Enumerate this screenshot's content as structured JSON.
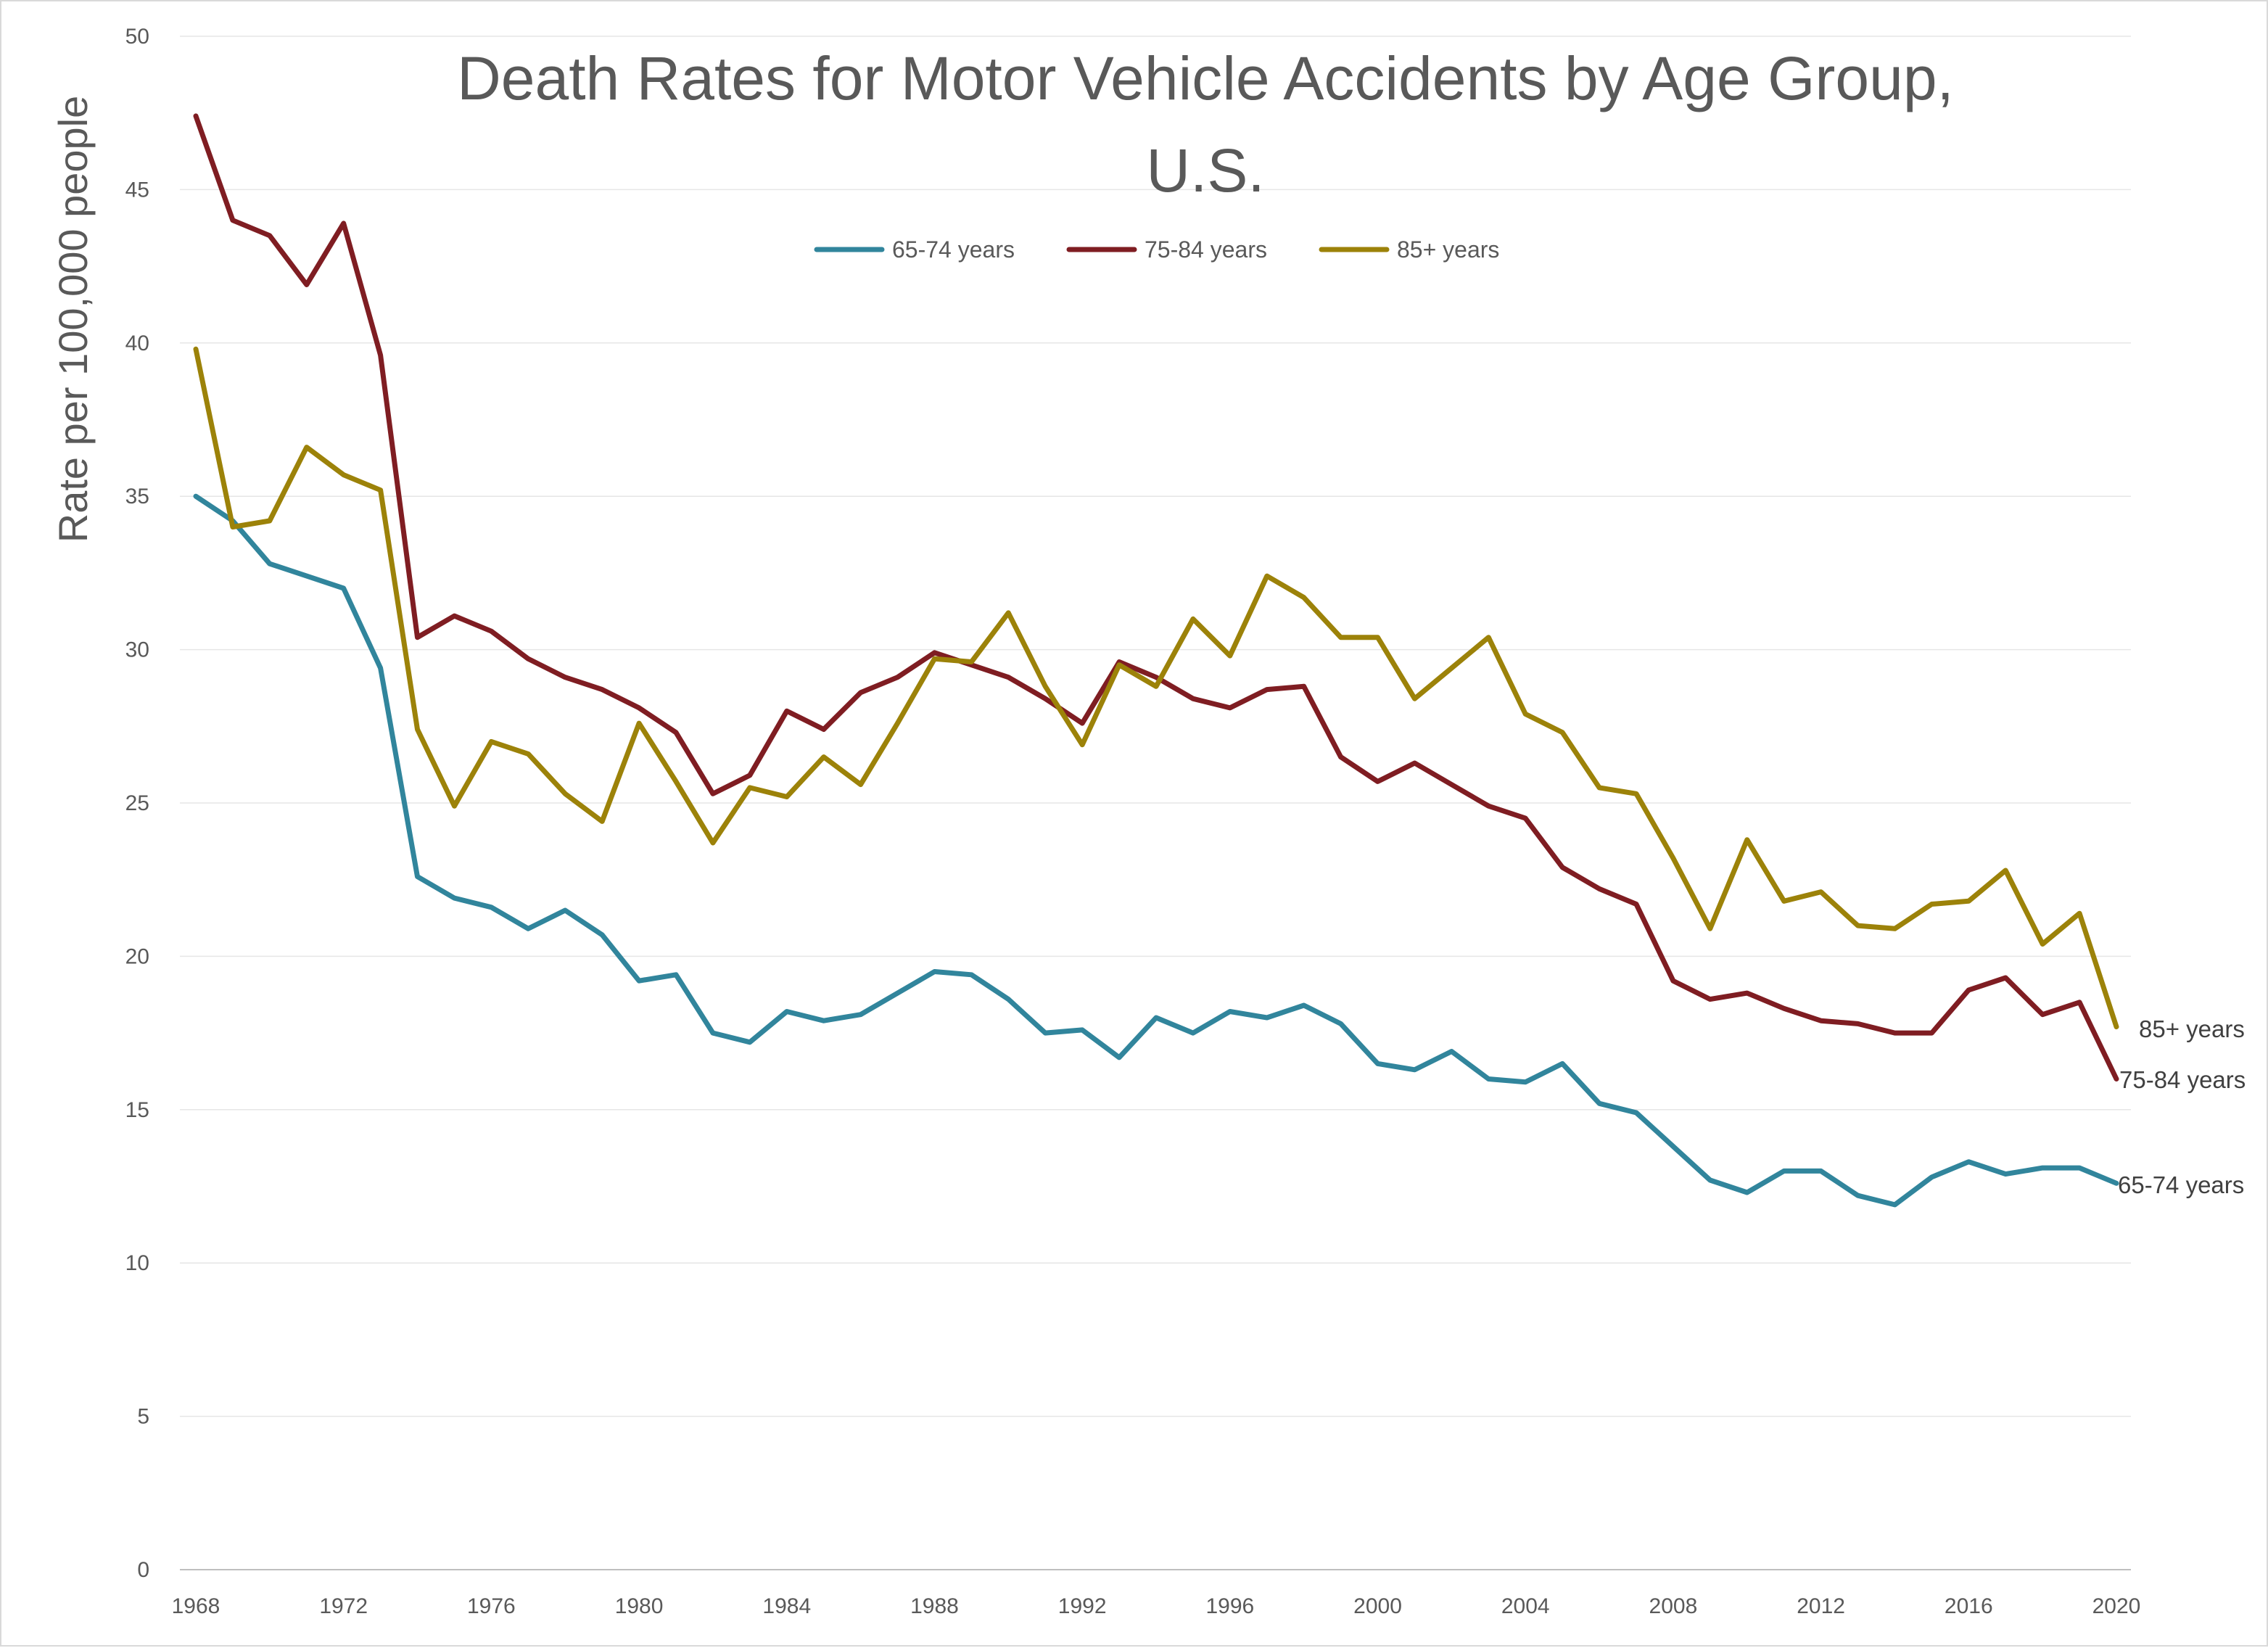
{
  "chart_data": {
    "type": "line",
    "title_line1": "Death Rates for Motor Vehicle Accidents  by Age Group,",
    "title_line2": "U.S.",
    "xlabel": "",
    "ylabel": "Rate per 100,000 people",
    "ylim": [
      0,
      50
    ],
    "xlim": [
      1968,
      2020
    ],
    "yticks": [
      0,
      5,
      10,
      15,
      20,
      25,
      30,
      35,
      40,
      45,
      50
    ],
    "xticks": [
      1968,
      1972,
      1976,
      1980,
      1984,
      1988,
      1992,
      1996,
      2000,
      2004,
      2008,
      2012,
      2016,
      2020
    ],
    "grid": "horizontal",
    "legend_position": "top",
    "x": [
      1968,
      1969,
      1970,
      1971,
      1972,
      1973,
      1974,
      1975,
      1976,
      1977,
      1978,
      1979,
      1980,
      1981,
      1982,
      1983,
      1984,
      1985,
      1986,
      1987,
      1988,
      1989,
      1990,
      1991,
      1992,
      1993,
      1994,
      1995,
      1996,
      1997,
      1998,
      1999,
      2000,
      2001,
      2002,
      2003,
      2004,
      2005,
      2006,
      2007,
      2008,
      2009,
      2010,
      2011,
      2012,
      2013,
      2014,
      2015,
      2016,
      2017,
      2018,
      2019,
      2020
    ],
    "series": [
      {
        "name": "65-74 years",
        "color": "#31859c",
        "end_label": "65-74 years",
        "values": [
          35.0,
          34.2,
          32.8,
          32.4,
          32.0,
          29.4,
          22.6,
          21.9,
          21.6,
          20.9,
          21.5,
          20.7,
          19.2,
          19.4,
          17.5,
          17.2,
          18.2,
          17.9,
          18.1,
          18.8,
          19.5,
          19.4,
          18.6,
          17.5,
          17.6,
          16.7,
          18.0,
          17.5,
          18.2,
          18.0,
          18.4,
          17.8,
          16.5,
          16.3,
          16.9,
          16.0,
          15.9,
          16.5,
          15.2,
          14.9,
          13.8,
          12.7,
          12.3,
          13.0,
          13.0,
          12.2,
          11.9,
          12.8,
          13.3,
          12.9,
          13.1,
          13.1,
          12.6
        ]
      },
      {
        "name": "75-84 years",
        "color": "#7f1d22",
        "end_label": "75-84 years",
        "values": [
          47.4,
          44.0,
          43.5,
          41.9,
          43.9,
          39.6,
          30.4,
          31.1,
          30.6,
          29.7,
          29.1,
          28.7,
          28.1,
          27.3,
          25.3,
          25.9,
          28.0,
          27.4,
          28.6,
          29.1,
          29.9,
          29.5,
          29.1,
          28.4,
          27.6,
          29.6,
          29.1,
          28.4,
          28.1,
          28.7,
          28.8,
          26.5,
          25.7,
          26.3,
          25.6,
          24.9,
          24.5,
          22.9,
          22.2,
          21.7,
          19.2,
          18.6,
          18.8,
          18.3,
          17.9,
          17.8,
          17.5,
          17.5,
          18.9,
          19.3,
          18.1,
          18.5,
          16.0
        ]
      },
      {
        "name": "85+ years",
        "color": "#9c8209",
        "end_label": "85+ years",
        "values": [
          39.8,
          34.0,
          34.2,
          36.6,
          35.7,
          35.2,
          27.4,
          24.9,
          27.0,
          26.6,
          25.3,
          24.4,
          27.6,
          25.7,
          23.7,
          25.5,
          25.2,
          26.5,
          25.6,
          27.6,
          29.7,
          29.6,
          31.2,
          28.8,
          26.9,
          29.5,
          28.8,
          31.0,
          29.8,
          32.4,
          31.7,
          30.4,
          30.4,
          28.4,
          29.4,
          30.4,
          27.9,
          27.3,
          25.5,
          25.3,
          23.2,
          20.9,
          23.8,
          21.8,
          22.1,
          21.0,
          20.9,
          21.7,
          21.8,
          22.8,
          20.4,
          21.4,
          17.7
        ]
      }
    ]
  }
}
